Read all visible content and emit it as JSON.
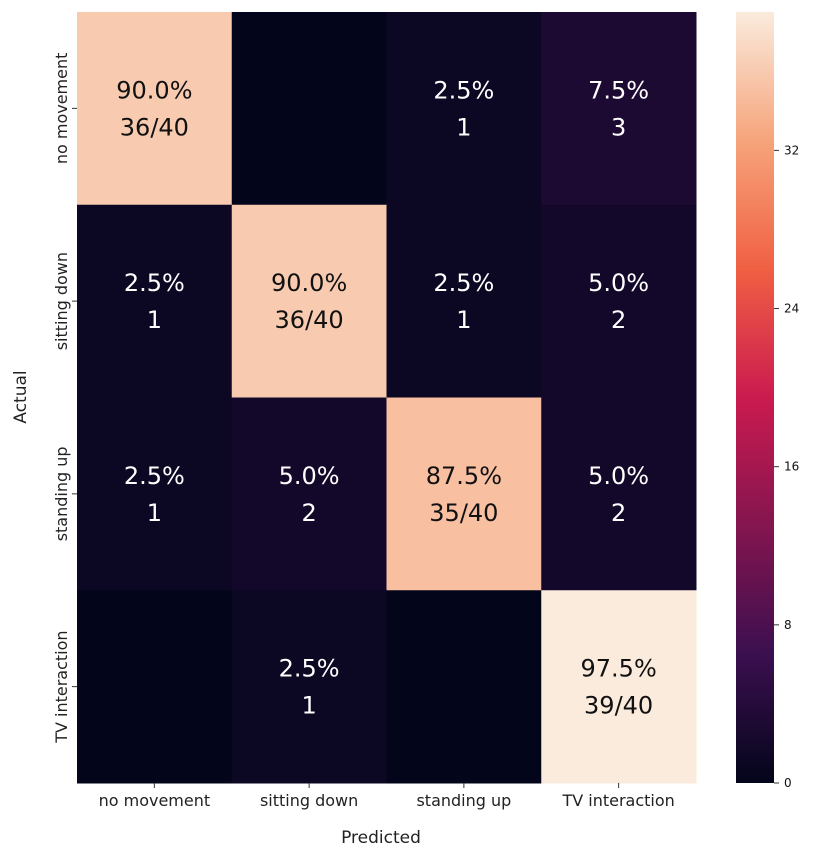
{
  "chart_data": {
    "type": "heatmap",
    "title": "",
    "xlabel": "Predicted",
    "ylabel": "Actual",
    "x_categories": [
      "no movement",
      "sitting down",
      "standing up",
      "TV interaction"
    ],
    "y_categories": [
      "no movement",
      "sitting down",
      "standing up",
      "TV interaction"
    ],
    "values": [
      [
        36,
        0,
        1,
        3
      ],
      [
        1,
        36,
        1,
        2
      ],
      [
        1,
        2,
        35,
        2
      ],
      [
        0,
        1,
        0,
        39
      ]
    ],
    "annotations": [
      [
        [
          "90.0%",
          "36/40"
        ],
        [
          "",
          ""
        ],
        [
          "2.5%",
          "1"
        ],
        [
          "7.5%",
          "3"
        ]
      ],
      [
        [
          "2.5%",
          "1"
        ],
        [
          "90.0%",
          "36/40"
        ],
        [
          "2.5%",
          "1"
        ],
        [
          "5.0%",
          "2"
        ]
      ],
      [
        [
          "2.5%",
          "1"
        ],
        [
          "5.0%",
          "2"
        ],
        [
          "87.5%",
          "35/40"
        ],
        [
          "5.0%",
          "2"
        ]
      ],
      [
        [
          "",
          ""
        ],
        [
          "2.5%",
          "1"
        ],
        [
          "",
          ""
        ],
        [
          "97.5%",
          "39/40"
        ]
      ]
    ],
    "colorbar": {
      "range": [
        0,
        39
      ],
      "ticks": [
        0,
        8,
        16,
        24,
        32
      ],
      "colormap": "rocket",
      "colors": [
        "#03051a",
        "#3b0f4f",
        "#84154f",
        "#cb1b4f",
        "#f06043",
        "#f6a47b",
        "#faebdd"
      ]
    }
  }
}
